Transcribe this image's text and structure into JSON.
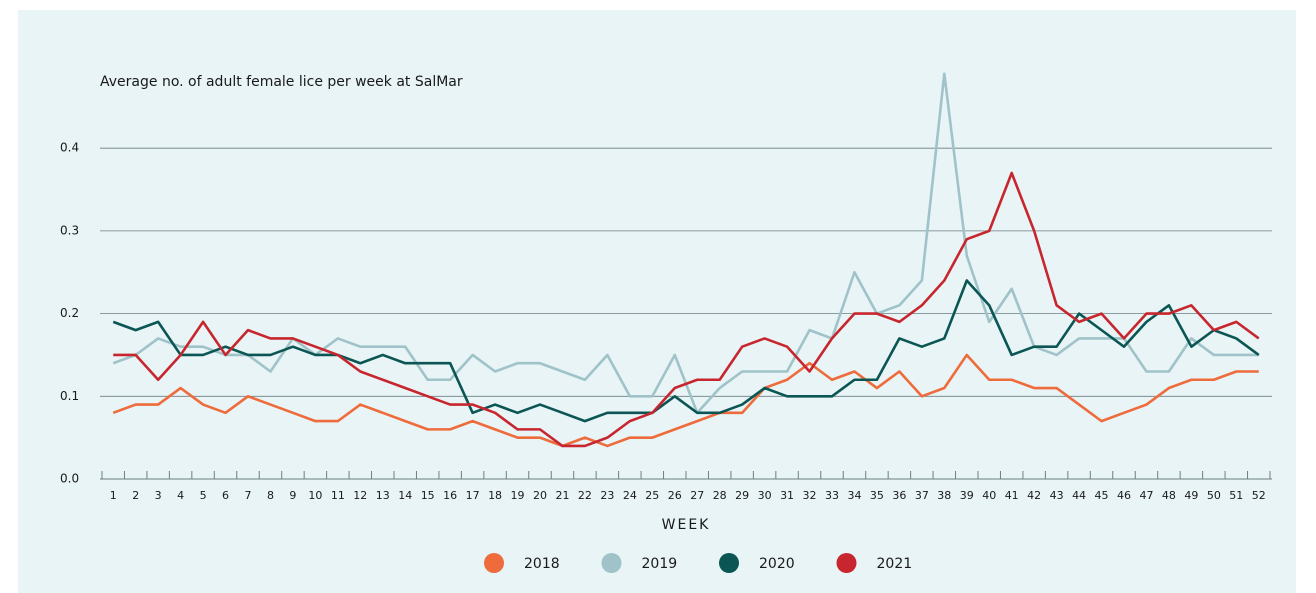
{
  "chart_data": {
    "type": "line",
    "title": "Average no. of adult female lice per week at SalMar",
    "x_label": "WEEK",
    "categories": [
      "1",
      "2",
      "3",
      "4",
      "5",
      "6",
      "7",
      "8",
      "9",
      "10",
      "11",
      "12",
      "13",
      "14",
      "15",
      "16",
      "17",
      "18",
      "19",
      "20",
      "21",
      "22",
      "23",
      "24",
      "25",
      "26",
      "27",
      "28",
      "29",
      "30",
      "31",
      "32",
      "33",
      "34",
      "35",
      "36",
      "37",
      "38",
      "39",
      "40",
      "41",
      "42",
      "43",
      "44",
      "45",
      "46",
      "47",
      "48",
      "49",
      "50",
      "51",
      "52"
    ],
    "ylim": [
      0,
      0.5
    ],
    "yticks": [
      {
        "value": 0,
        "label": "0.0"
      },
      0.1,
      0.2,
      0.3,
      0.4
    ],
    "grid": true,
    "legend": "bottom",
    "series": [
      {
        "name": "2018",
        "color": "#ee6b3b",
        "values": [
          0.08,
          0.09,
          0.09,
          0.11,
          0.09,
          0.08,
          0.1,
          0.09,
          0.08,
          0.07,
          0.07,
          0.09,
          0.08,
          0.07,
          0.06,
          0.06,
          0.07,
          0.06,
          0.05,
          0.05,
          0.04,
          0.05,
          0.04,
          0.05,
          0.05,
          0.06,
          0.07,
          0.08,
          0.08,
          0.11,
          0.12,
          0.14,
          0.12,
          0.13,
          0.11,
          0.13,
          0.1,
          0.11,
          0.15,
          0.12,
          0.12,
          0.11,
          0.11,
          0.09,
          0.07,
          0.08,
          0.09,
          0.11,
          0.12,
          0.12,
          0.13,
          0.13
        ]
      },
      {
        "name": "2019",
        "color": "#9fc3c8",
        "values": [
          0.14,
          0.15,
          0.17,
          0.16,
          0.16,
          0.15,
          0.15,
          0.13,
          0.17,
          0.15,
          0.17,
          0.16,
          0.16,
          0.16,
          0.12,
          0.12,
          0.15,
          0.13,
          0.14,
          0.14,
          0.13,
          0.12,
          0.15,
          0.1,
          0.1,
          0.15,
          0.08,
          0.11,
          0.13,
          0.13,
          0.13,
          0.18,
          0.17,
          0.25,
          0.2,
          0.21,
          0.24,
          0.49,
          0.27,
          0.19,
          0.23,
          0.16,
          0.15,
          0.17,
          0.17,
          0.17,
          0.13,
          0.13,
          0.17,
          0.15,
          0.15,
          0.15
        ]
      },
      {
        "name": "2020",
        "color": "#0b5654",
        "values": [
          0.19,
          0.18,
          0.19,
          0.15,
          0.15,
          0.16,
          0.15,
          0.15,
          0.16,
          0.15,
          0.15,
          0.14,
          0.15,
          0.14,
          0.14,
          0.14,
          0.08,
          0.09,
          0.08,
          0.09,
          0.08,
          0.07,
          0.08,
          0.08,
          0.08,
          0.1,
          0.08,
          0.08,
          0.09,
          0.11,
          0.1,
          0.1,
          0.1,
          0.12,
          0.12,
          0.17,
          0.16,
          0.17,
          0.24,
          0.21,
          0.15,
          0.16,
          0.16,
          0.2,
          0.18,
          0.16,
          0.19,
          0.21,
          0.16,
          0.18,
          0.17,
          0.15
        ]
      },
      {
        "name": "2021",
        "color": "#c8262e",
        "values": [
          0.15,
          0.15,
          0.12,
          0.15,
          0.19,
          0.15,
          0.18,
          0.17,
          0.17,
          0.16,
          0.15,
          0.13,
          0.12,
          0.11,
          0.1,
          0.09,
          0.09,
          0.08,
          0.06,
          0.06,
          0.04,
          0.04,
          0.05,
          0.07,
          0.08,
          0.11,
          0.12,
          0.12,
          0.16,
          0.17,
          0.16,
          0.13,
          0.17,
          0.2,
          0.2,
          0.19,
          0.21,
          0.24,
          0.29,
          0.3,
          0.37,
          0.3,
          0.21,
          0.19,
          0.2,
          0.17,
          0.2,
          0.2,
          0.21,
          0.18,
          0.19,
          0.17
        ]
      }
    ]
  }
}
